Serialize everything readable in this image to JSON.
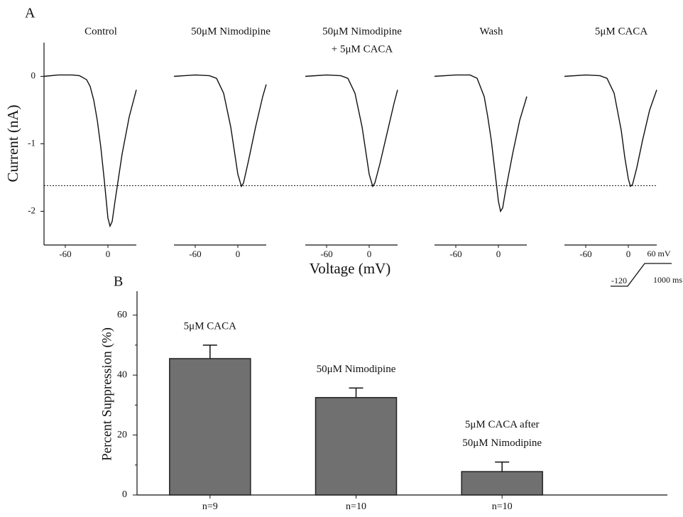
{
  "chart_data": [
    {
      "type": "line",
      "panel_label": "A",
      "ylabel": "Current (nA)",
      "xlabel": "Voltage (mV)",
      "ylim": [
        -2.5,
        0.5
      ],
      "yticks": [
        0,
        -1,
        -2
      ],
      "xlim": [
        -90,
        40
      ],
      "xticks": [
        -60,
        0
      ],
      "hline": -1.62,
      "color": "#111111",
      "series": [
        {
          "name": [
            "Control"
          ],
          "x": [
            -90,
            -70,
            -50,
            -40,
            -30,
            -25,
            -20,
            -15,
            -10,
            -5,
            0,
            3,
            6,
            10,
            20,
            30,
            40
          ],
          "values": [
            0,
            0.02,
            0.02,
            0.01,
            -0.05,
            -0.15,
            -0.35,
            -0.65,
            -1.05,
            -1.55,
            -2.1,
            -2.22,
            -2.15,
            -1.85,
            -1.15,
            -0.6,
            -0.2
          ]
        },
        {
          "name": [
            "50μM Nimodipine"
          ],
          "x": [
            -90,
            -60,
            -40,
            -30,
            -20,
            -10,
            -5,
            0,
            5,
            8,
            15,
            25,
            35,
            40
          ],
          "values": [
            0,
            0.02,
            0.01,
            -0.03,
            -0.25,
            -0.75,
            -1.1,
            -1.45,
            -1.63,
            -1.58,
            -1.25,
            -0.75,
            -0.3,
            -0.12
          ]
        },
        {
          "name": [
            "50μM Nimodipine",
            "+ 5μM CACA"
          ],
          "x": [
            -90,
            -60,
            -40,
            -30,
            -20,
            -10,
            -5,
            0,
            5,
            8,
            15,
            25,
            35,
            40
          ],
          "values": [
            0,
            0.02,
            0.01,
            -0.03,
            -0.25,
            -0.75,
            -1.1,
            -1.45,
            -1.63,
            -1.58,
            -1.3,
            -0.85,
            -0.4,
            -0.2
          ]
        },
        {
          "name": [
            "Wash"
          ],
          "x": [
            -90,
            -60,
            -40,
            -30,
            -20,
            -15,
            -10,
            -5,
            0,
            3,
            6,
            10,
            20,
            30,
            40
          ],
          "values": [
            0,
            0.02,
            0.02,
            -0.03,
            -0.3,
            -0.6,
            -0.95,
            -1.4,
            -1.85,
            -2.0,
            -1.95,
            -1.7,
            -1.15,
            -0.65,
            -0.3
          ]
        },
        {
          "name": [
            "5μM CACA"
          ],
          "x": [
            -90,
            -60,
            -40,
            -30,
            -20,
            -10,
            -5,
            0,
            3,
            6,
            12,
            20,
            30,
            40
          ],
          "values": [
            0,
            0.02,
            0.01,
            -0.03,
            -0.25,
            -0.8,
            -1.2,
            -1.52,
            -1.63,
            -1.6,
            -1.35,
            -0.95,
            -0.5,
            -0.2
          ]
        }
      ],
      "protocol": {
        "top_label": "60 mV",
        "bottom_label": "-120",
        "duration_label": "1000 ms"
      }
    },
    {
      "type": "bar",
      "panel_label": "B",
      "ylabel": "Percent Suppression  (%)",
      "categories": [
        "n=9",
        "n=10",
        "n=10"
      ],
      "values": [
        45.5,
        32.5,
        7.8
      ],
      "errors": [
        4.5,
        3.2,
        3.2
      ],
      "annotations": [
        [
          "5μM CACA"
        ],
        [
          "50μM Nimodipine"
        ],
        [
          "5μM CACA after",
          "50μM Nimodipine"
        ]
      ],
      "color": "#707070",
      "ylim": [
        0,
        68
      ],
      "yticks": [
        0,
        20,
        40,
        60
      ],
      "minor_yticks": [
        10,
        30,
        50
      ]
    }
  ]
}
